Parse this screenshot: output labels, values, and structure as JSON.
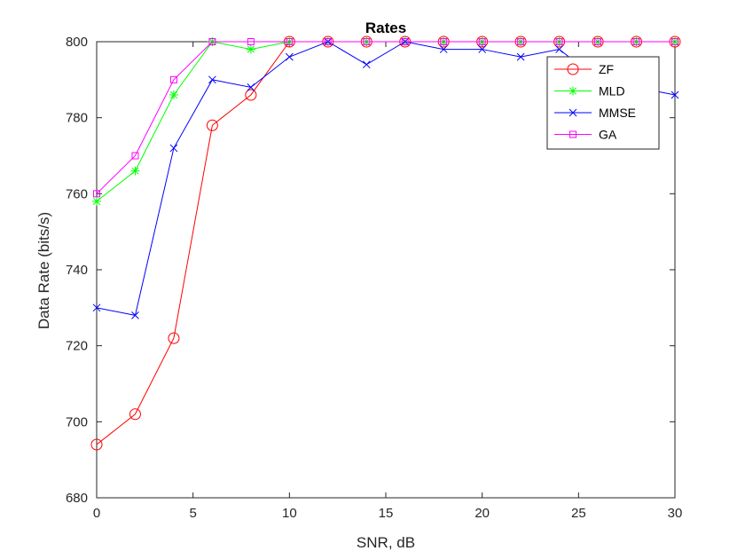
{
  "chart_data": {
    "type": "line",
    "title": "Rates",
    "xlabel": "SNR, dB",
    "ylabel": "Data Rate (bits/s)",
    "xlim": [
      0,
      30
    ],
    "ylim": [
      680,
      800
    ],
    "xticks": [
      0,
      5,
      10,
      15,
      20,
      25,
      30
    ],
    "yticks": [
      680,
      700,
      720,
      740,
      760,
      780,
      800
    ],
    "grid": false,
    "legend_position": "top-right",
    "x": [
      0,
      2,
      4,
      6,
      8,
      10,
      12,
      14,
      16,
      18,
      20,
      22,
      24,
      26,
      28,
      30
    ],
    "series": [
      {
        "name": "ZF",
        "color": "#ff0000",
        "marker": "circle",
        "values": [
          694,
          702,
          722,
          778,
          786,
          800,
          800,
          800,
          800,
          800,
          800,
          800,
          800,
          800,
          800,
          800
        ]
      },
      {
        "name": "MLD",
        "color": "#00ff00",
        "marker": "asterisk",
        "values": [
          758,
          766,
          786,
          800,
          798,
          800,
          800,
          800,
          800,
          800,
          800,
          800,
          800,
          800,
          800,
          800
        ]
      },
      {
        "name": "MMSE",
        "color": "#0000ff",
        "marker": "x",
        "values": [
          730,
          728,
          772,
          790,
          788,
          796,
          800,
          794,
          800,
          798,
          798,
          796,
          798,
          790,
          788,
          786
        ]
      },
      {
        "name": "GA",
        "color": "#ff00ff",
        "marker": "square",
        "values": [
          760,
          770,
          790,
          800,
          800,
          800,
          800,
          800,
          800,
          800,
          800,
          800,
          800,
          800,
          800,
          800
        ]
      }
    ]
  }
}
